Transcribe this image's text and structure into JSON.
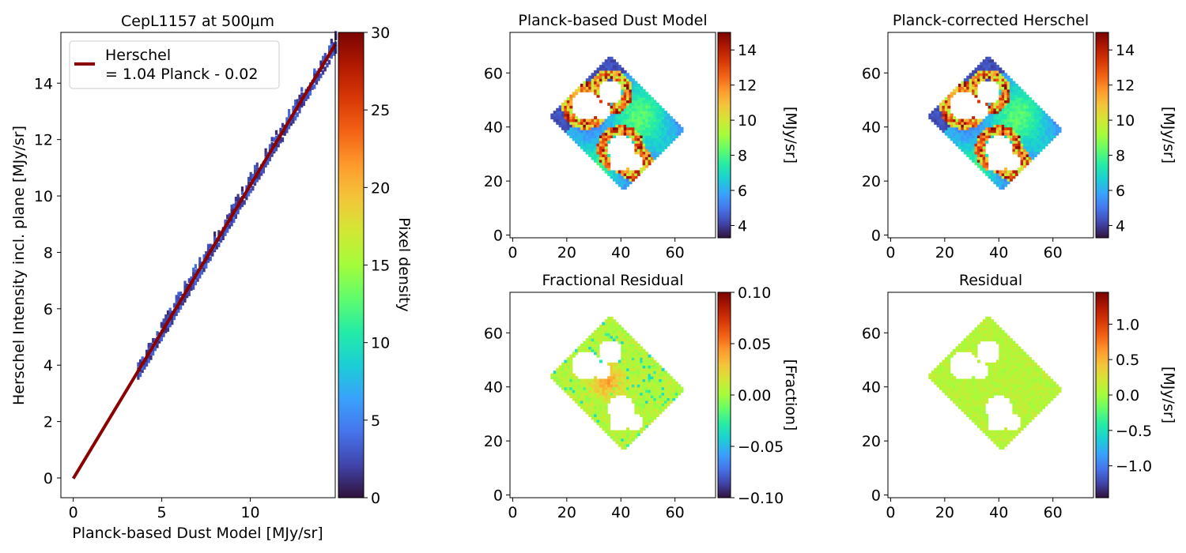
{
  "colormap": [
    "#30123b",
    "#4145ab",
    "#4675ed",
    "#39a2fc",
    "#1bcfd4",
    "#24eca6",
    "#61fc6c",
    "#a4fc3b",
    "#d1e834",
    "#f3c63a",
    "#fe9b2d",
    "#f36315",
    "#d93807",
    "#b11901",
    "#7a0402"
  ],
  "chart_data": [
    {
      "type": "heatmap",
      "title": "CepL1157 at 500µm",
      "xlabel": "Planck-based Dust Model [MJy/sr]",
      "ylabel": "Herschel Intensity incl. plane [MJy/sr]",
      "xlim": [
        -0.7,
        14.8
      ],
      "ylim": [
        -0.7,
        15.8
      ],
      "x_ticks": [
        0,
        5,
        10
      ],
      "y_ticks": [
        0,
        2,
        4,
        6,
        8,
        10,
        12,
        14
      ],
      "grid": false,
      "legend_position": "top-left",
      "fit": {
        "name": "Herschel\n= 1.04 Planck - 0.02",
        "slope": 1.04,
        "intercept": -0.02,
        "x_range": [
          0,
          14.8
        ],
        "color": "#8b0000"
      },
      "density_range": [
        3.6,
        14.8
      ],
      "colorbar": {
        "label": "Pixel density",
        "min": 0,
        "max": 30,
        "ticks": [
          0,
          5,
          10,
          15,
          20,
          25,
          30
        ]
      }
    },
    {
      "type": "heatmap",
      "title": "Planck-based Dust Model",
      "xlim": [
        -1,
        75
      ],
      "ylim": [
        -1,
        75
      ],
      "x_ticks": [
        0,
        20,
        40,
        60
      ],
      "y_ticks": [
        0,
        20,
        40,
        60
      ],
      "colorbar": {
        "label": "[MJy/sr]",
        "min": 3.3,
        "max": 15,
        "ticks": [
          4,
          6,
          8,
          10,
          12,
          14
        ]
      }
    },
    {
      "type": "heatmap",
      "title": "Planck-corrected Herschel",
      "xlim": [
        -1,
        75
      ],
      "ylim": [
        -1,
        75
      ],
      "x_ticks": [
        0,
        20,
        40,
        60
      ],
      "y_ticks": [
        0,
        20,
        40,
        60
      ],
      "colorbar": {
        "label": "[MJy/sr]",
        "min": 3.3,
        "max": 15,
        "ticks": [
          4,
          6,
          8,
          10,
          12,
          14
        ]
      }
    },
    {
      "type": "heatmap",
      "title": "Fractional Residual",
      "xlim": [
        -1,
        75
      ],
      "ylim": [
        -1,
        75
      ],
      "x_ticks": [
        0,
        20,
        40,
        60
      ],
      "y_ticks": [
        0,
        20,
        40,
        60
      ],
      "colorbar": {
        "label": "[Fraction]",
        "min": -0.1,
        "max": 0.1,
        "ticks": [
          -0.1,
          -0.05,
          0.0,
          0.05,
          0.1
        ],
        "tick_labels": [
          "−0.10",
          "−0.05",
          "0.00",
          "0.05",
          "0.10"
        ]
      }
    },
    {
      "type": "heatmap",
      "title": "Residual",
      "xlim": [
        -1,
        75
      ],
      "ylim": [
        -1,
        75
      ],
      "x_ticks": [
        0,
        20,
        40,
        60
      ],
      "y_ticks": [
        0,
        20,
        40,
        60
      ],
      "colorbar": {
        "label": "[MJy/sr]",
        "min": -1.45,
        "max": 1.45,
        "ticks": [
          -1.0,
          -0.5,
          0.0,
          0.5,
          1.0
        ],
        "tick_labels": [
          "−1.0",
          "−0.5",
          "0.0",
          "0.5",
          "1.0"
        ]
      }
    }
  ]
}
